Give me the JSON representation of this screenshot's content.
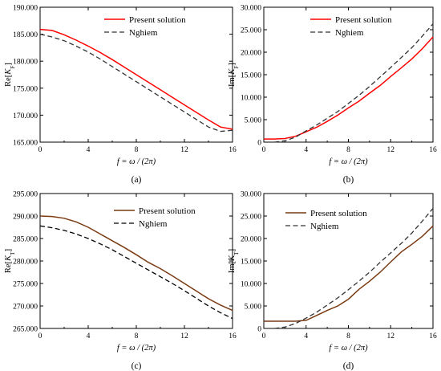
{
  "chart_data": [
    {
      "panel_label": "(a)",
      "type": "line",
      "ylabel": "Re[K_F]",
      "xlabel": "f = ω / (2π)",
      "xlim": [
        0,
        16
      ],
      "ylim": [
        165000,
        190000
      ],
      "xticks": [
        0,
        4,
        8,
        12,
        16
      ],
      "xtick_labels": [
        "0",
        "4",
        "8",
        "12",
        "16"
      ],
      "yticks": [
        165000,
        170000,
        175000,
        180000,
        185000,
        190000
      ],
      "ytick_labels": [
        "165.000",
        "170.000",
        "175.000",
        "180.000",
        "185.000",
        "190.000"
      ],
      "legend_position": "top-right",
      "series": [
        {
          "name": "Present solution",
          "color": "#ff0000",
          "dash": "solid",
          "x": [
            0,
            1,
            2,
            3,
            4,
            5,
            6,
            7,
            8,
            9,
            10,
            11,
            12,
            13,
            14,
            15,
            16
          ],
          "y": [
            185900,
            185700,
            184900,
            183900,
            182800,
            181600,
            180300,
            178900,
            177500,
            176100,
            174700,
            173300,
            171900,
            170500,
            169100,
            167800,
            167400
          ]
        },
        {
          "name": "Nghiem",
          "color": "#333333",
          "dash": "dash",
          "x": [
            0,
            1,
            2,
            3,
            4,
            5,
            6,
            7,
            8,
            9,
            10,
            11,
            12,
            13,
            14,
            15,
            16
          ],
          "y": [
            185000,
            184500,
            183800,
            182800,
            181700,
            180400,
            179000,
            177600,
            176200,
            174800,
            173400,
            172000,
            170600,
            169200,
            167800,
            167000,
            167200
          ]
        }
      ]
    },
    {
      "panel_label": "(b)",
      "type": "line",
      "ylabel": "Im[K_F]",
      "xlabel": "f = ω / (2π)",
      "xlim": [
        0,
        16
      ],
      "ylim": [
        0,
        30000
      ],
      "xticks": [
        0,
        4,
        8,
        12,
        16
      ],
      "xtick_labels": [
        "0",
        "4",
        "8",
        "12",
        "16"
      ],
      "yticks": [
        0,
        5000,
        10000,
        15000,
        20000,
        25000,
        30000
      ],
      "ytick_labels": [
        "0",
        "5.000",
        "10.000",
        "15.000",
        "20.000",
        "25.000",
        "30.000"
      ],
      "legend_position": "top-right",
      "series": [
        {
          "name": "Present solution",
          "color": "#ff0000",
          "dash": "solid",
          "x": [
            0,
            1,
            2,
            3,
            4,
            5,
            6,
            7,
            8,
            9,
            10,
            11,
            12,
            13,
            14,
            15,
            16
          ],
          "y": [
            700,
            700,
            800,
            1300,
            2300,
            3300,
            4600,
            6000,
            7600,
            9100,
            10900,
            12600,
            14600,
            16500,
            18500,
            20800,
            23400
          ]
        },
        {
          "name": "Nghiem",
          "color": "#333333",
          "dash": "dash",
          "x": [
            1,
            2,
            3,
            4,
            5,
            6,
            7,
            8,
            9,
            10,
            11,
            12,
            13,
            14,
            15,
            16
          ],
          "y": [
            0,
            300,
            1100,
            2500,
            3800,
            5300,
            6800,
            8600,
            10400,
            12400,
            14500,
            16600,
            18800,
            21000,
            23600,
            26300
          ]
        }
      ]
    },
    {
      "panel_label": "(c)",
      "type": "line",
      "ylabel": "Re[K_T]",
      "xlabel": "f = ω / (2π)",
      "xlim": [
        0,
        16
      ],
      "ylim": [
        265000,
        295000
      ],
      "xticks": [
        0,
        4,
        8,
        12,
        16
      ],
      "xtick_labels": [
        "0",
        "4",
        "8",
        "12",
        "16"
      ],
      "yticks": [
        265000,
        270000,
        275000,
        280000,
        285000,
        290000,
        295000
      ],
      "ytick_labels": [
        "265.000",
        "270.000",
        "275.000",
        "280.000",
        "285.000",
        "290.000",
        "295.000"
      ],
      "legend_position": "top-right",
      "series": [
        {
          "name": "Present solution",
          "color": "#7a3a12",
          "dash": "solid",
          "x": [
            0,
            1,
            2,
            3,
            4,
            5,
            6,
            7,
            8,
            9,
            10,
            11,
            12,
            13,
            14,
            15,
            16
          ],
          "y": [
            290000,
            289900,
            289500,
            288700,
            287500,
            286000,
            284500,
            283000,
            281400,
            279700,
            278300,
            276700,
            275000,
            273300,
            271600,
            270200,
            269000
          ]
        },
        {
          "name": "Nghiem",
          "color": "#000000",
          "dash": "dash",
          "x": [
            0,
            1,
            2,
            3,
            4,
            5,
            6,
            7,
            8,
            9,
            10,
            11,
            12,
            13,
            14,
            15,
            16
          ],
          "y": [
            287800,
            287400,
            286800,
            286000,
            285000,
            283800,
            282500,
            281000,
            279500,
            278000,
            276500,
            275000,
            273400,
            271700,
            270000,
            268500,
            267200
          ]
        }
      ]
    },
    {
      "panel_label": "(d)",
      "type": "line",
      "ylabel": "Im[K_T]",
      "xlabel": "f = ω / (2π)",
      "xlim": [
        0,
        16
      ],
      "ylim": [
        0,
        30000
      ],
      "xticks": [
        0,
        4,
        8,
        12,
        16
      ],
      "xtick_labels": [
        "0",
        "4",
        "8",
        "12",
        "16"
      ],
      "yticks": [
        0,
        5000,
        10000,
        15000,
        20000,
        25000,
        30000
      ],
      "ytick_labels": [
        "0",
        "5.000",
        "10.000",
        "15.000",
        "20.000",
        "25.000",
        "30.000"
      ],
      "legend_position": "top-left",
      "series": [
        {
          "name": "Present solution",
          "color": "#7a3a12",
          "dash": "solid",
          "x": [
            0,
            1,
            2,
            3,
            4,
            5,
            6,
            7,
            8,
            9,
            10,
            11,
            12,
            13,
            14,
            15,
            16
          ],
          "y": [
            1600,
            1600,
            1600,
            1600,
            1800,
            2900,
            4000,
            5000,
            6500,
            8700,
            10500,
            12500,
            14800,
            17000,
            18700,
            20500,
            22800
          ]
        },
        {
          "name": "Nghiem",
          "color": "#333333",
          "dash": "dash",
          "x": [
            1,
            2,
            3,
            4,
            5,
            6,
            7,
            8,
            9,
            10,
            11,
            12,
            13,
            14,
            15,
            16
          ],
          "y": [
            0,
            300,
            1100,
            2300,
            3600,
            5200,
            6800,
            8600,
            10500,
            12500,
            14700,
            16800,
            18900,
            21200,
            23900,
            26700
          ]
        }
      ]
    }
  ]
}
